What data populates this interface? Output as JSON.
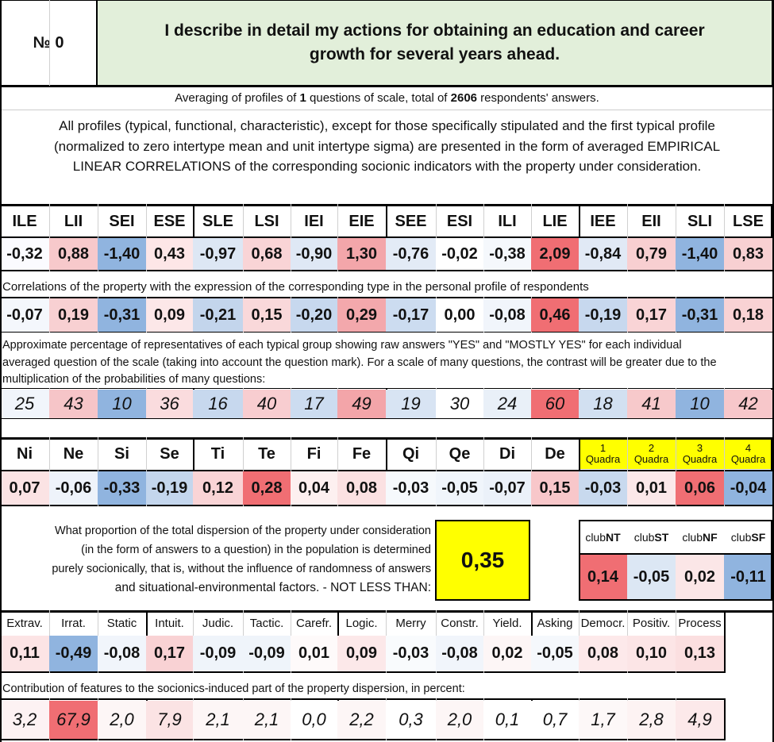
{
  "header": {
    "number_label": "№ 0",
    "title_line1": "I describe in detail my actions for obtaining an education and career",
    "title_line2": "growth for several years ahead."
  },
  "averaging": {
    "prefix": "Averaging of profiles of ",
    "questions": "1",
    "middle": " questions of scale, total of ",
    "respondents": "2606",
    "suffix": " respondents' answers."
  },
  "description": {
    "line1": "All profiles (typical, functional, characteristic), except for those specifically stipulated and the first typical profile",
    "line2": "(normalized to zero intertype mean and unit intertype sigma) are presented in the form of averaged EMPIRICAL",
    "line3": "LINEAR CORRELATIONS of the corresponding socionic indicators with the property under consideration."
  },
  "types": {
    "headers": [
      "ILE",
      "LII",
      "SEI",
      "ESE",
      "SLE",
      "LSI",
      "IEI",
      "EIE",
      "SEE",
      "ESI",
      "ILI",
      "LIE",
      "IEE",
      "EII",
      "SLI",
      "LSE"
    ],
    "profile": [
      "-0,32",
      "0,88",
      "-1,40",
      "0,43",
      "-0,97",
      "0,68",
      "-0,90",
      "1,30",
      "-0,76",
      "-0,02",
      "-0,38",
      "2,09",
      "-0,84",
      "0,79",
      "-1,40",
      "0,83"
    ],
    "profile_colors": [
      "#fbfbff",
      "#f7c9cb",
      "#90b4df",
      "#fde6e7",
      "#dde7f4",
      "#f9d4d6",
      "#dfe8f5",
      "#f3a6aa",
      "#e3ebf6",
      "#ffffff",
      "#f5f8fc",
      "#f06e73",
      "#e1e9f5",
      "#f8cfd1",
      "#90b4df",
      "#f8d0d2"
    ],
    "correlations_caption": "Correlations of the property with the expression of the corresponding type in the personal profile of respondents",
    "correlations": [
      "-0,07",
      "0,19",
      "-0,31",
      "0,09",
      "-0,21",
      "0,15",
      "-0,20",
      "0,29",
      "-0,17",
      "0,00",
      "-0,08",
      "0,46",
      "-0,19",
      "0,17",
      "-0,31",
      "0,18"
    ],
    "correlation_colors": [
      "#f4f7fc",
      "#f8d0d2",
      "#90b4df",
      "#fce7e8",
      "#c3d5ec",
      "#f9d8da",
      "#c7d8ee",
      "#f3a8ac",
      "#ccdcf0",
      "#ffffff",
      "#f1f5fb",
      "#f06e73",
      "#c7d8ee",
      "#f9d4d6",
      "#90b4df",
      "#f9d2d4"
    ],
    "percentage_caption_line1": "Approximate percentage of representatives of each typical group showing raw answers \"YES\" and \"MOSTLY YES\" for each individual",
    "percentage_caption_line2": "averaged question of the scale (taking into account the question mark). For a scale of many questions, the contrast will be greater due to the",
    "percentage_caption_line3": "multiplication of the probabilities of many questions:",
    "percentages": [
      "25",
      "43",
      "10",
      "36",
      "16",
      "40",
      "17",
      "49",
      "19",
      "30",
      "24",
      "60",
      "18",
      "41",
      "10",
      "42"
    ],
    "percentage_colors": [
      "#f1f5fb",
      "#f6c5c8",
      "#90b4df",
      "#fadcde",
      "#c7d8ee",
      "#f8cdd0",
      "#ccdcf0",
      "#f3a5a9",
      "#d8e4f3",
      "#ffffff",
      "#e9f0f8",
      "#f06e73",
      "#d2e0f1",
      "#f7c9cb",
      "#90b4df",
      "#f7c7ca"
    ]
  },
  "functions": {
    "headers": [
      "Ni",
      "Ne",
      "Si",
      "Se",
      "Ti",
      "Te",
      "Fi",
      "Fe",
      "Qi",
      "Qe",
      "Di",
      "De"
    ],
    "values": [
      "0,07",
      "-0,06",
      "-0,33",
      "-0,19",
      "0,12",
      "0,28",
      "0,04",
      "0,08",
      "-0,03",
      "-0,05",
      "-0,07",
      "0,15"
    ],
    "colors": [
      "#fbe3e4",
      "#eef3fa",
      "#90b4df",
      "#c4d6ed",
      "#f9d4d6",
      "#f06e73",
      "#fdf0f0",
      "#fbe1e2",
      "#f6f9fc",
      "#f0f5fb",
      "#ebf1f9",
      "#f8c7ca"
    ],
    "quadra_headers": [
      {
        "num": "1",
        "label": "Quadra"
      },
      {
        "num": "2",
        "label": "Quadra"
      },
      {
        "num": "3",
        "label": "Quadra"
      },
      {
        "num": "4",
        "label": "Quadra"
      }
    ],
    "quadra_values": [
      "-0,03",
      "0,01",
      "0,06",
      "-0,04"
    ],
    "quadra_colors": [
      "#c8d9ee",
      "#fbe8e9",
      "#f06e73",
      "#90b4df"
    ],
    "quadra_header_color": "#ffff00"
  },
  "dispersion": {
    "line1": "What proportion of the total dispersion of the property under consideration",
    "line2": "(in the form of answers to a question) in the population is determined",
    "line3": "purely socionically, that is, without the influence of randomness of answers",
    "line4": "and situational-environmental factors. - NOT LESS THAN:",
    "value": "0,35",
    "value_bg": "#ffff00"
  },
  "clubs": {
    "headers": [
      {
        "prefix": "club",
        "suffix": "NT"
      },
      {
        "prefix": "club",
        "suffix": "ST"
      },
      {
        "prefix": "club",
        "suffix": "NF"
      },
      {
        "prefix": "club",
        "suffix": "SF"
      }
    ],
    "values": [
      "0,14",
      "-0,05",
      "0,02",
      "-0,11"
    ],
    "colors": [
      "#f06e73",
      "#dce7f4",
      "#fbe6e7",
      "#90b4df"
    ]
  },
  "features": {
    "headers": [
      "Extrav.",
      "Irrat.",
      "Static",
      "Intuit.",
      "Judic.",
      "Tactic.",
      "Carefr.",
      "Logic.",
      "Merry",
      "Constr.",
      "Yield.",
      "Asking",
      "Democr.",
      "Positiv.",
      "Process"
    ],
    "values": [
      "0,11",
      "-0,49",
      "-0,08",
      "0,17",
      "-0,09",
      "-0,09",
      "0,01",
      "0,09",
      "-0,03",
      "-0,08",
      "0,02",
      "-0,05",
      "0,08",
      "0,10",
      "0,13"
    ],
    "colors": [
      "#fce4e5",
      "#90b4df",
      "#f1f5fb",
      "#f9d2d4",
      "#eff4fa",
      "#eff4fa",
      "#fefafa",
      "#fce8e9",
      "#f9fbfd",
      "#f1f5fb",
      "#fdf6f6",
      "#f5f8fc",
      "#fde9ea",
      "#fce5e6",
      "#fbdfe0"
    ],
    "contribution_caption": "Contribution of features to the sociоnics-induced part of the property dispersion, in percent:",
    "contributions": [
      "3,2",
      "67,9",
      "2,0",
      "7,9",
      "2,1",
      "2,1",
      "0,0",
      "2,2",
      "0,3",
      "2,0",
      "0,1",
      "0,7",
      "1,7",
      "2,8",
      "4,9"
    ],
    "contribution_colors": [
      "#fdf2f3",
      "#f06e73",
      "#fdf6f6",
      "#fbe3e4",
      "#fdf6f6",
      "#fdf6f6",
      "#ffffff",
      "#fdf6f6",
      "#ffffff",
      "#fdf6f6",
      "#ffffff",
      "#ffffff",
      "#fdf8f8",
      "#fdf3f3",
      "#fce9ea"
    ]
  },
  "colors": {
    "title_bg": "#e2efda",
    "border": "#000000"
  }
}
